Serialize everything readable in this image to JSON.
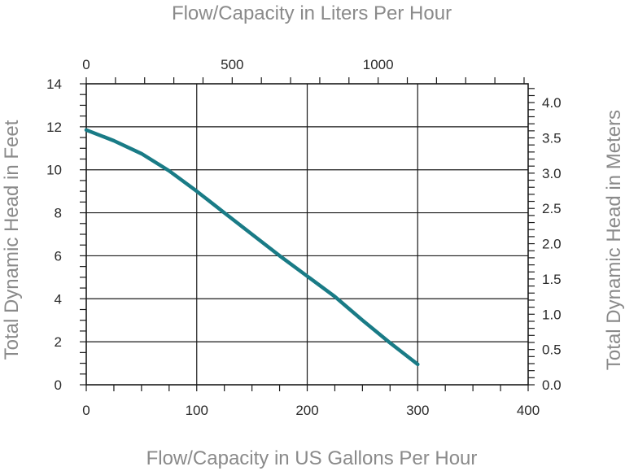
{
  "chart_data": {
    "type": "line",
    "title": "",
    "xlabel": "Flow/Capacity in US Gallons Per Hour",
    "x2label": "Flow/Capacity in Liters Per Hour",
    "ylabel": "Total Dynamic Head in Feet",
    "y2label": "Total Dynamic Head in Meters",
    "xlim": [
      0,
      400
    ],
    "ylim": [
      0,
      14
    ],
    "x2lim": [
      0,
      1514
    ],
    "y2lim": [
      0,
      4.267
    ],
    "x_ticks": [
      "0",
      "100",
      "200",
      "300",
      "400"
    ],
    "x_tick_values": [
      0,
      100,
      200,
      300,
      400
    ],
    "y_ticks": [
      "0",
      "2",
      "4",
      "6",
      "8",
      "10",
      "12",
      "14"
    ],
    "y_tick_values": [
      0,
      2,
      4,
      6,
      8,
      10,
      12,
      14
    ],
    "x2_ticks": [
      "0",
      "500",
      "1000"
    ],
    "x2_tick_values": [
      0,
      500,
      1000
    ],
    "y2_ticks": [
      "0.0",
      "0.5",
      "1.0",
      "1.5",
      "2.0",
      "2.5",
      "3.0",
      "3.5",
      "4.0"
    ],
    "y2_tick_values": [
      0.0,
      0.5,
      1.0,
      1.5,
      2.0,
      2.5,
      3.0,
      3.5,
      4.0
    ],
    "grid": true,
    "line_color": "#197b86",
    "series": [
      {
        "x": [
          0,
          25,
          50,
          75,
          100,
          125,
          150,
          175,
          200,
          225,
          250,
          275,
          300
        ],
        "y": [
          11.85,
          11.35,
          10.75,
          9.95,
          9.0,
          8.0,
          7.0,
          6.0,
          5.05,
          4.1,
          3.0,
          1.95,
          0.95
        ]
      }
    ]
  }
}
